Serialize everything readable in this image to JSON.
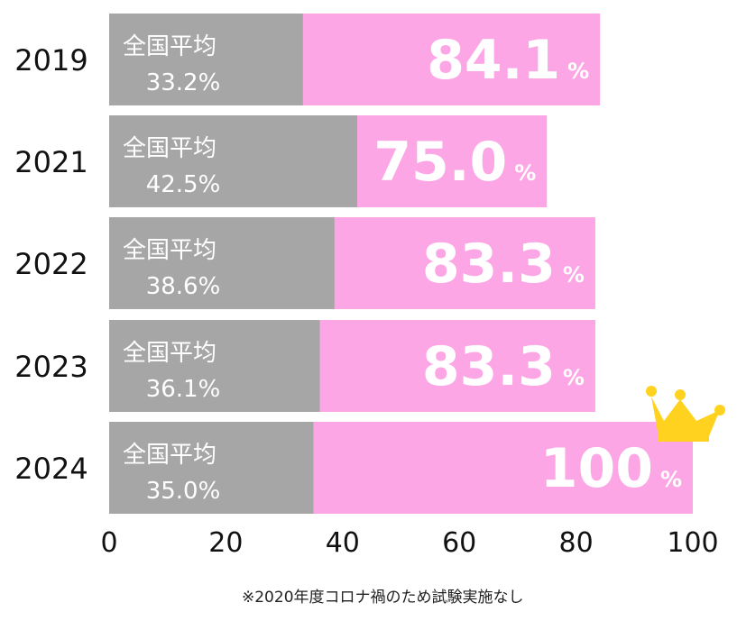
{
  "chart_data": {
    "type": "bar",
    "orientation": "horizontal",
    "stacked_overlay": true,
    "categories": [
      "2019",
      "2021",
      "2022",
      "2023",
      "2024"
    ],
    "series": [
      {
        "name": "全国平均",
        "values": [
          33.2,
          42.5,
          38.6,
          36.1,
          35.0
        ],
        "color": "#a6a6a6"
      },
      {
        "values": [
          84.1,
          75.0,
          83.3,
          83.3,
          100
        ],
        "color": "#fda6e6"
      }
    ],
    "value_labels": [
      "84.1",
      "75.0",
      "83.3",
      "83.3",
      "100"
    ],
    "value_unit": "%",
    "inner_label": "全国平均",
    "inner_value_labels": [
      "33.2%",
      "42.5%",
      "38.6%",
      "36.1%",
      "35.0%"
    ],
    "xlim": [
      0,
      100
    ],
    "xticks": [
      "0",
      "20",
      "40",
      "60",
      "80",
      "100"
    ],
    "grid": false,
    "highlight_icon": "crown-icon",
    "highlight_color": "#ffd21f"
  },
  "footnote": "※2020年度コロナ禍のため試験実施なし"
}
